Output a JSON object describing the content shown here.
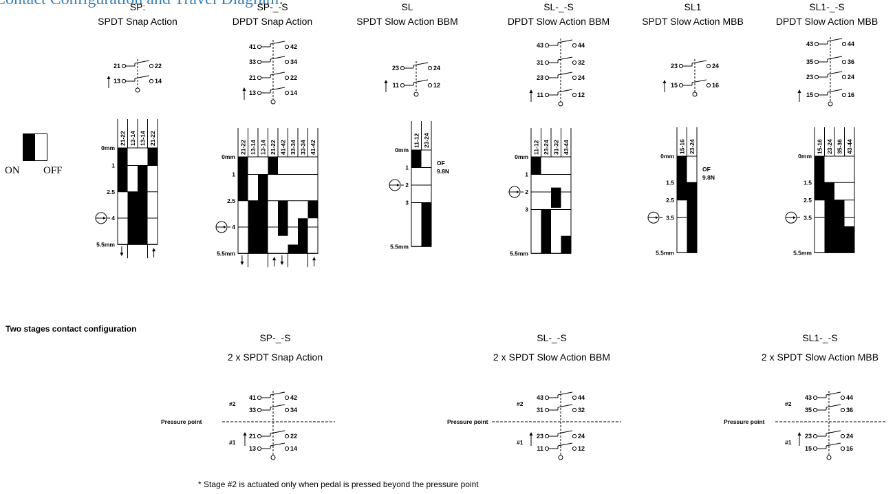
{
  "page_title": "Contact Configuration and Travel Diagram:",
  "legend": {
    "on": "ON",
    "off": "OFF"
  },
  "columns": [
    {
      "code": "SP:",
      "label": "SPDT Snap Action"
    },
    {
      "code": "SP-_-S",
      "label": "DPDT Snap Action"
    },
    {
      "code": "SL",
      "label": "SPDT Slow Action BBM"
    },
    {
      "code": "SL-_-S",
      "label": "DPDT Slow Action BBM"
    },
    {
      "code": "SL1",
      "label": "SPDT Slow Action MBB"
    },
    {
      "code": "SL1-_-S",
      "label": "DPDT Slow Action MBB"
    }
  ],
  "schematics": [
    {
      "rows": [
        [
          "21",
          "22"
        ],
        [
          "13",
          "14"
        ]
      ]
    },
    {
      "rows": [
        [
          "41",
          "42"
        ],
        [
          "33",
          "34"
        ],
        [
          "21",
          "22"
        ],
        [
          "13",
          "14"
        ]
      ]
    },
    {
      "rows": [
        [
          "23",
          "24"
        ],
        [
          "11",
          "12"
        ]
      ]
    },
    {
      "rows": [
        [
          "43",
          "44"
        ],
        [
          "31",
          "32"
        ],
        [
          "23",
          "24"
        ],
        [
          "11",
          "12"
        ]
      ]
    },
    {
      "rows": [
        [
          "23",
          "24"
        ],
        [
          "15",
          "16"
        ]
      ]
    },
    {
      "rows": [
        [
          "43",
          "44"
        ],
        [
          "35",
          "36"
        ],
        [
          "23",
          "24"
        ],
        [
          "15",
          "16"
        ]
      ]
    }
  ],
  "travel_diagrams": [
    {
      "headers": [
        "21-22",
        "13-14",
        "13-14",
        "21-22"
      ],
      "ticks": [
        {
          "mm": 0,
          "label": "0mm"
        },
        {
          "mm": 1,
          "label": "1"
        },
        {
          "mm": 2.5,
          "label": "2.5"
        },
        {
          "mm": 4,
          "label": "4"
        },
        {
          "mm": 5.5,
          "label": "5.5mm"
        }
      ],
      "on": [
        [
          [
            0,
            2.5
          ]
        ],
        [
          [
            2.5,
            5.5
          ]
        ],
        [
          [
            1,
            5.5
          ]
        ],
        [
          [
            0,
            1
          ]
        ]
      ],
      "pressure_mm": 4,
      "note": []
    },
    {
      "headers": [
        "21-22",
        "13-14",
        "13-14",
        "21-22",
        "41-42",
        "33-34",
        "33-34",
        "41-42"
      ],
      "ticks": [
        {
          "mm": 0,
          "label": "0mm"
        },
        {
          "mm": 1,
          "label": "1"
        },
        {
          "mm": 2.5,
          "label": "2.5"
        },
        {
          "mm": 4,
          "label": "4"
        },
        {
          "mm": 5.5,
          "label": "5.5mm"
        }
      ],
      "on": [
        [
          [
            0,
            2.5
          ]
        ],
        [
          [
            2.5,
            5.5
          ]
        ],
        [
          [
            1,
            5.5
          ]
        ],
        [
          [
            0,
            1
          ]
        ],
        [
          [
            2.5,
            4.5
          ]
        ],
        [
          [
            5,
            5.5
          ]
        ],
        [
          [
            3.5,
            5.5
          ]
        ],
        [
          [
            2.5,
            3.5
          ]
        ]
      ],
      "pressure_mm": 4,
      "note": []
    },
    {
      "headers": [
        "11-12",
        "23-24"
      ],
      "ticks": [
        {
          "mm": 0,
          "label": "0mm"
        },
        {
          "mm": 1,
          "label": "1"
        },
        {
          "mm": 2,
          "label": "2"
        },
        {
          "mm": 3,
          "label": "3"
        },
        {
          "mm": 5.5,
          "label": "5.5mm"
        }
      ],
      "on": [
        [
          [
            0,
            1
          ]
        ],
        [
          [
            3,
            5.5
          ]
        ]
      ],
      "pressure_mm": 2,
      "note": [
        "OF",
        "9.8N"
      ]
    },
    {
      "headers": [
        "11-12",
        "23-24",
        "31-32",
        "43-44"
      ],
      "ticks": [
        {
          "mm": 0,
          "label": "0mm"
        },
        {
          "mm": 1,
          "label": "1"
        },
        {
          "mm": 2,
          "label": "2"
        },
        {
          "mm": 3,
          "label": "3"
        },
        {
          "mm": 5.5,
          "label": "5.5mm"
        }
      ],
      "on": [
        [
          [
            0,
            1
          ]
        ],
        [
          [
            3,
            5.5
          ]
        ],
        [
          [
            1.75,
            2.9
          ]
        ],
        [
          [
            4.5,
            5.5
          ]
        ]
      ],
      "pressure_mm": 2,
      "note": []
    },
    {
      "headers": [
        "15-16",
        "23-24"
      ],
      "ticks": [
        {
          "mm": 0,
          "label": "0mm"
        },
        {
          "mm": 1.5,
          "label": "1.5"
        },
        {
          "mm": 2.5,
          "label": "2.5"
        },
        {
          "mm": 3.5,
          "label": "3.5"
        },
        {
          "mm": 5.5,
          "label": "5.5mm"
        }
      ],
      "on": [
        [
          [
            0,
            2.5
          ]
        ],
        [
          [
            1.5,
            5.5
          ]
        ]
      ],
      "pressure_mm": 3.5,
      "note": [
        "OF",
        "9.8N"
      ]
    },
    {
      "headers": [
        "15-16",
        "23-24",
        "35-36",
        "43-44"
      ],
      "ticks": [
        {
          "mm": 0,
          "label": "0mm"
        },
        {
          "mm": 1.5,
          "label": "1.5"
        },
        {
          "mm": 2.5,
          "label": "2.5"
        },
        {
          "mm": 3.5,
          "label": "3.5"
        },
        {
          "mm": 5.5,
          "label": "5.5mm"
        }
      ],
      "on": [
        [
          [
            0,
            2.5
          ]
        ],
        [
          [
            1.5,
            5.5
          ]
        ],
        [
          [
            2.5,
            5.5
          ]
        ],
        [
          [
            4,
            5.5
          ]
        ]
      ],
      "pressure_mm": 3.5,
      "note": []
    }
  ],
  "two_stage": {
    "heading": "Two stages contact configuration",
    "pressure_label": "Pressure point",
    "stage1": "#1",
    "stage2": "#2",
    "items": [
      {
        "code": "SP-_-S",
        "label": "2 x SPDT Snap Action",
        "rows": [
          [
            "41",
            "42"
          ],
          [
            "33",
            "34"
          ],
          [
            "21",
            "22"
          ],
          [
            "13",
            "14"
          ]
        ]
      },
      {
        "code": "SL-_-S",
        "label": "2 x SPDT Slow Action BBM",
        "rows": [
          [
            "43",
            "44"
          ],
          [
            "31",
            "32"
          ],
          [
            "23",
            "24"
          ],
          [
            "11",
            "12"
          ]
        ]
      },
      {
        "code": "SL1-_-S",
        "label": "2 x SPDT Slow Action MBB",
        "rows": [
          [
            "43",
            "44"
          ],
          [
            "35",
            "36"
          ],
          [
            "23",
            "24"
          ],
          [
            "15",
            "16"
          ]
        ]
      }
    ],
    "footnote": "* Stage #2 is actuated only when pedal is pressed beyond the pressure point"
  }
}
